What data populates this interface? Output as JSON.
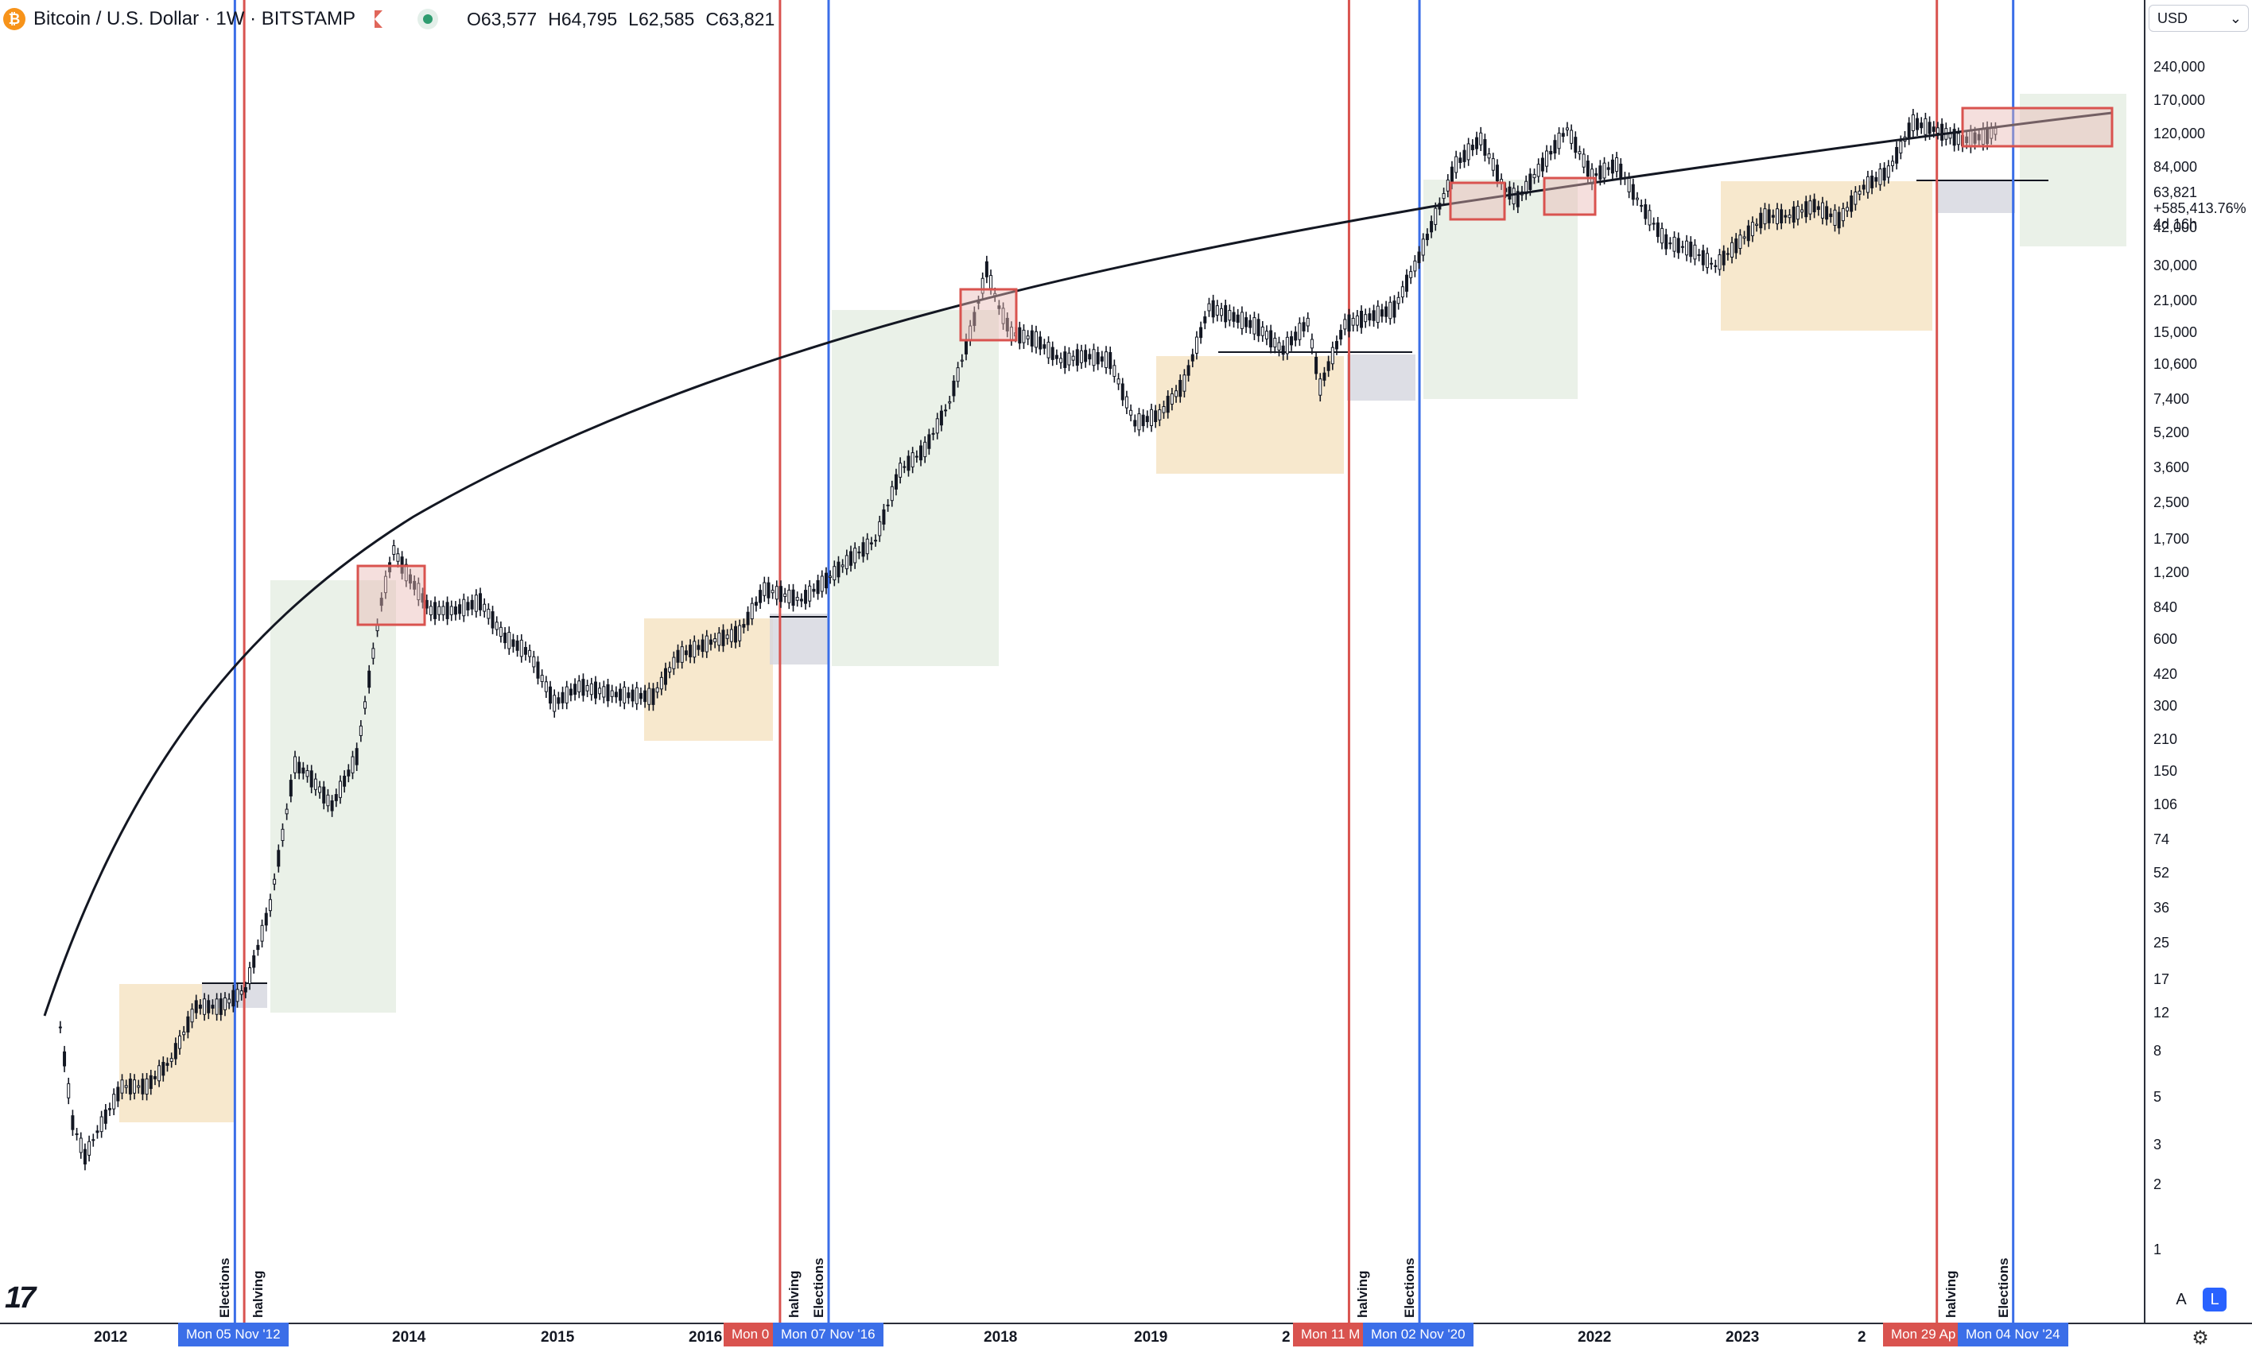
{
  "header": {
    "coin_icon": "bitcoin-icon",
    "symbol": "Bitcoin / U.S. Dollar · 1W · BITSTAMP",
    "open": "O63,577",
    "high": "H64,795",
    "low": "L62,585",
    "close": "C63,821"
  },
  "currency": "USD",
  "price_scale": {
    "ticks": [
      "240,000",
      "170,000",
      "120,000",
      "84,000",
      "42,000",
      "30,000",
      "21,000",
      "15,000",
      "10,600",
      "7,400",
      "5,200",
      "3,600",
      "2,500",
      "1,700",
      "1,200",
      "840",
      "600",
      "420",
      "300",
      "210",
      "150",
      "106",
      "74",
      "52",
      "36",
      "25",
      "17",
      "12",
      "8",
      "5",
      "3",
      "2",
      "1"
    ],
    "last_price": "63,821",
    "change": "+585,413.76%",
    "countdown": "4d 16h"
  },
  "time_scale": {
    "years": [
      "2012",
      "2014",
      "2015",
      "2016",
      "2018",
      "2019",
      "2",
      "2022",
      "2023",
      "2"
    ],
    "badges": [
      {
        "text": "Mon 05 Nov '12",
        "color": "#3b6ee8"
      },
      {
        "text": "Mon 0",
        "color": "#d9534f"
      },
      {
        "text": "Mon 07 Nov '16",
        "color": "#3b6ee8"
      },
      {
        "text": "Mon 11 M",
        "color": "#d9534f"
      },
      {
        "text": "Mon 02 Nov '20",
        "color": "#3b6ee8"
      },
      {
        "text": "Mon 29 Ap",
        "color": "#d9534f"
      },
      {
        "text": "Mon 04 Nov '24",
        "color": "#3b6ee8"
      }
    ]
  },
  "buttons": {
    "auto": "A",
    "log": "L"
  },
  "chart_data": {
    "type": "candlestick",
    "y_scale": "log",
    "ylim": [
      1,
      240000
    ],
    "xlim": [
      "2011-06",
      "2025-06"
    ],
    "series": [
      {
        "name": "Bitcoin / U.S. Dollar",
        "points": [
          [
            "2011-09",
            9
          ],
          [
            "2011-10",
            3.5
          ],
          [
            "2011-11",
            2.5
          ],
          [
            "2011-12",
            3.2
          ],
          [
            "2012-02",
            5
          ],
          [
            "2012-04",
            5
          ],
          [
            "2012-06",
            6.5
          ],
          [
            "2012-08",
            11
          ],
          [
            "2012-10",
            11
          ],
          [
            "2012-12",
            13
          ],
          [
            "2013-02",
            30
          ],
          [
            "2013-04",
            120
          ],
          [
            "2013-05",
            110
          ],
          [
            "2013-07",
            80
          ],
          [
            "2013-09",
            130
          ],
          [
            "2013-11",
            600
          ],
          [
            "2013-12",
            1000
          ],
          [
            "2014-01",
            800
          ],
          [
            "2014-03",
            550
          ],
          [
            "2014-05",
            550
          ],
          [
            "2014-07",
            600
          ],
          [
            "2014-09",
            420
          ],
          [
            "2014-11",
            360
          ],
          [
            "2015-01",
            220
          ],
          [
            "2015-03",
            260
          ],
          [
            "2015-06",
            240
          ],
          [
            "2015-09",
            235
          ],
          [
            "2015-11",
            350
          ],
          [
            "2016-02",
            410
          ],
          [
            "2016-04",
            440
          ],
          [
            "2016-06",
            680
          ],
          [
            "2016-09",
            610
          ],
          [
            "2016-11",
            740
          ],
          [
            "2017-01",
            920
          ],
          [
            "2017-03",
            1100
          ],
          [
            "2017-05",
            2200
          ],
          [
            "2017-07",
            2700
          ],
          [
            "2017-09",
            4300
          ],
          [
            "2017-11",
            9800
          ],
          [
            "2017-12",
            16000
          ],
          [
            "2018-01",
            11000
          ],
          [
            "2018-02",
            8500
          ],
          [
            "2018-04",
            8000
          ],
          [
            "2018-06",
            6500
          ],
          [
            "2018-08",
            6800
          ],
          [
            "2018-10",
            6500
          ],
          [
            "2018-12",
            3500
          ],
          [
            "2019-02",
            3800
          ],
          [
            "2019-04",
            5200
          ],
          [
            "2019-06",
            11000
          ],
          [
            "2019-08",
            10000
          ],
          [
            "2019-10",
            9000
          ],
          [
            "2019-12",
            7200
          ],
          [
            "2020-02",
            9500
          ],
          [
            "2020-03",
            5000
          ],
          [
            "2020-05",
            9300
          ],
          [
            "2020-07",
            10000
          ],
          [
            "2020-09",
            10800
          ],
          [
            "2020-11",
            18000
          ],
          [
            "2021-01",
            33000
          ],
          [
            "2021-02",
            45000
          ],
          [
            "2021-04",
            58000
          ],
          [
            "2021-06",
            35000
          ],
          [
            "2021-07",
            32000
          ],
          [
            "2021-09",
            45000
          ],
          [
            "2021-11",
            64000
          ],
          [
            "2022-01",
            40000
          ],
          [
            "2022-03",
            45000
          ],
          [
            "2022-05",
            30000
          ],
          [
            "2022-07",
            21000
          ],
          [
            "2022-09",
            19500
          ],
          [
            "2022-11",
            16500
          ],
          [
            "2023-01",
            21000
          ],
          [
            "2023-03",
            27000
          ],
          [
            "2023-05",
            27000
          ],
          [
            "2023-07",
            30000
          ],
          [
            "2023-09",
            26000
          ],
          [
            "2023-11",
            36000
          ],
          [
            "2024-01",
            42000
          ],
          [
            "2024-03",
            68000
          ],
          [
            "2024-05",
            63000
          ],
          [
            "2024-07",
            57000
          ],
          [
            "2024-09",
            60000
          ],
          [
            "2024-10",
            63821
          ]
        ]
      }
    ],
    "events": [
      {
        "label": "Elections",
        "date": "2012-11-05",
        "color": "#3b6ee8"
      },
      {
        "label": "halving",
        "date": "2012-11-28",
        "color": "#d9534f"
      },
      {
        "label": "halving",
        "date": "2016-07-09",
        "color": "#d9534f"
      },
      {
        "label": "Elections",
        "date": "2016-11-07",
        "color": "#3b6ee8"
      },
      {
        "label": "halving",
        "date": "2020-05-11",
        "color": "#d9534f"
      },
      {
        "label": "Elections",
        "date": "2020-11-02",
        "color": "#3b6ee8"
      },
      {
        "label": "halving",
        "date": "2024-04-29",
        "color": "#d9534f"
      },
      {
        "label": "Elections",
        "date": "2024-11-04",
        "color": "#3b6ee8"
      }
    ]
  }
}
